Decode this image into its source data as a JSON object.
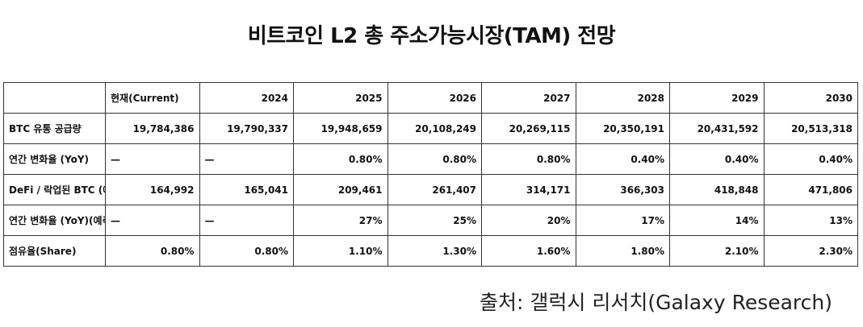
{
  "title": "비트코인 L2 총 주소가능시장(TAM) 전망",
  "table": {
    "headers": [
      "",
      "현재(Current)",
      "2024",
      "2025",
      "2026",
      "2027",
      "2028",
      "2029",
      "2030"
    ],
    "rows": [
      {
        "label": "BTC 유통 공급량",
        "cells": [
          "19,784,386",
          "19,790,337",
          "19,948,659",
          "20,108,249",
          "20,269,115",
          "20,350,191",
          "20,431,592",
          "20,513,318"
        ]
      },
      {
        "label": "연간 변화율 (YoY)",
        "cells": [
          "—",
          "—",
          "0.80%",
          "0.80%",
          "0.80%",
          "0.40%",
          "0.40%",
          "0.40%"
        ]
      },
      {
        "label": "DeFi / 락업된 BTC (예측)",
        "cells": [
          "164,992",
          "165,041",
          "209,461",
          "261,407",
          "314,171",
          "366,303",
          "418,848",
          "471,806"
        ]
      },
      {
        "label": "연간 변화율 (YoY)(예측)",
        "cells": [
          "—",
          "—",
          "27%",
          "25%",
          "20%",
          "17%",
          "14%",
          "13%"
        ]
      },
      {
        "label": "점유율(Share)",
        "cells": [
          "0.80%",
          "0.80%",
          "1.10%",
          "1.30%",
          "1.60%",
          "1.80%",
          "2.10%",
          "2.30%"
        ]
      }
    ]
  },
  "source": "출처: 갤럭시 리서치(Galaxy Research)"
}
